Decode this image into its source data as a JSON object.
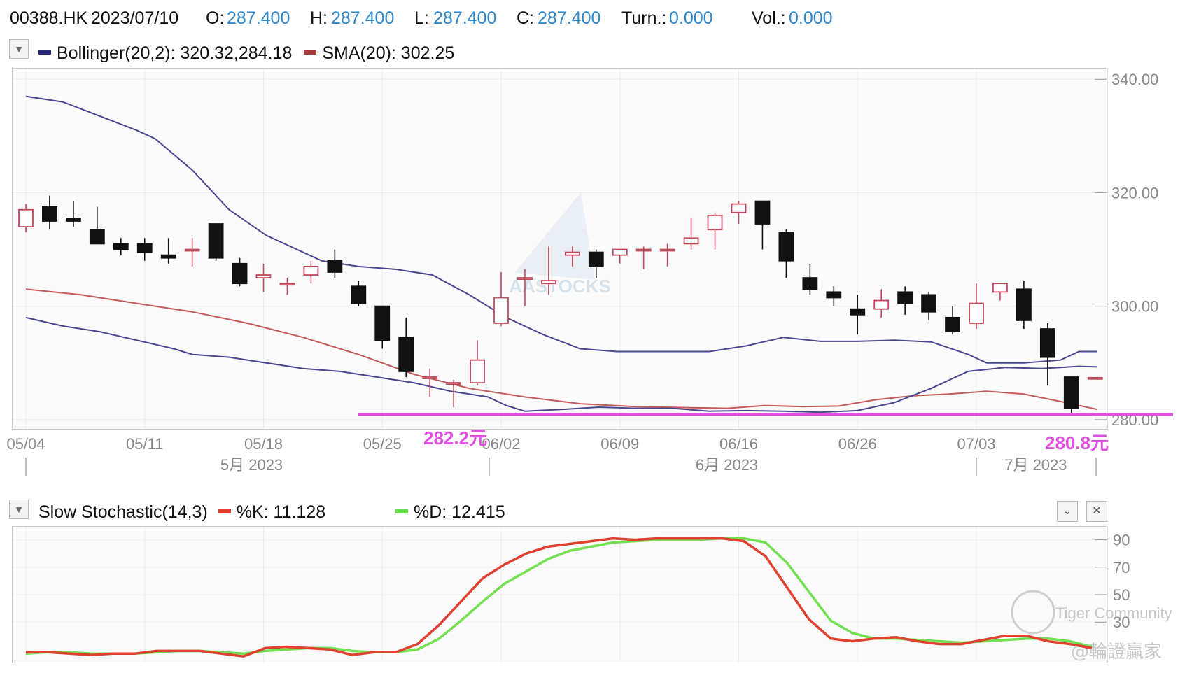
{
  "header": {
    "symbol": "00388.HK",
    "date": "2023/07/10",
    "open_label": "O:",
    "open": "287.400",
    "high_label": "H:",
    "high": "287.400",
    "low_label": "L:",
    "low": "287.400",
    "close_label": "C:",
    "close": "287.400",
    "turn_label": "Turn.:",
    "turn": "0.000",
    "vol_label": "Vol.:",
    "vol": "0.000"
  },
  "main_legend": {
    "bollinger": "Bollinger(20,2): 320.32,284.18",
    "sma": "SMA(20): 302.25",
    "bollinger_color": "#2c2a78",
    "sma_color": "#a83a3a"
  },
  "sub_legend": {
    "title": "Slow Stochastic(14,3)",
    "k": "%K: 11.128",
    "d": "%D: 12.415",
    "k_color": "#e04030",
    "d_color": "#66e04a"
  },
  "annotations": {
    "low_a": "282.2元",
    "low_b": "280.8元",
    "color": "#e050e0"
  },
  "watermarks": {
    "center": "AASTOCKS",
    "tiger": "Tiger Community",
    "handle": "@輪證贏家"
  },
  "chart_data": [
    {
      "type": "candlestick",
      "y_ticks": [
        "340.00",
        "320.00",
        "300.00",
        "280.00"
      ],
      "ylim": [
        278.5,
        342
      ],
      "x_tick_labels": [
        {
          "label": "05/04",
          "i": 0
        },
        {
          "label": "05/11",
          "i": 5
        },
        {
          "label": "05/18",
          "i": 10
        },
        {
          "label": "05/25",
          "i": 15
        },
        {
          "label": "06/02",
          "i": 20
        },
        {
          "label": "06/09",
          "i": 25
        },
        {
          "label": "06/16",
          "i": 30
        },
        {
          "label": "06/26",
          "i": 35
        },
        {
          "label": "07/03",
          "i": 40
        }
      ],
      "month_labels": [
        {
          "label": "5月 2023",
          "i": 9.5
        },
        {
          "label": "6月 2023",
          "i": 29.5
        },
        {
          "label": "7月 2023",
          "i": 42.5
        }
      ],
      "month_separators": [
        0,
        19.5,
        40
      ],
      "candles": [
        {
          "o": 314.0,
          "h": 318.0,
          "l": 313.0,
          "c": 317.0
        },
        {
          "o": 317.5,
          "h": 319.5,
          "l": 313.5,
          "c": 315.0
        },
        {
          "o": 315.5,
          "h": 318.5,
          "l": 314.0,
          "c": 315.0
        },
        {
          "o": 313.5,
          "h": 317.5,
          "l": 311.0,
          "c": 311.0
        },
        {
          "o": 311.0,
          "h": 312.0,
          "l": 309.0,
          "c": 310.0
        },
        {
          "o": 311.0,
          "h": 312.0,
          "l": 308.0,
          "c": 309.5
        },
        {
          "o": 309.0,
          "h": 312.0,
          "l": 307.5,
          "c": 308.5
        },
        {
          "o": 310.0,
          "h": 312.0,
          "l": 307.0,
          "c": 310.0
        },
        {
          "o": 314.5,
          "h": 314.5,
          "l": 308.0,
          "c": 308.5
        },
        {
          "o": 307.5,
          "h": 308.5,
          "l": 303.5,
          "c": 304.0
        },
        {
          "o": 305.0,
          "h": 307.5,
          "l": 302.5,
          "c": 305.5
        },
        {
          "o": 304.0,
          "h": 305.0,
          "l": 302.0,
          "c": 304.0
        },
        {
          "o": 305.5,
          "h": 308.0,
          "l": 304.0,
          "c": 307.0
        },
        {
          "o": 308.0,
          "h": 310.0,
          "l": 305.0,
          "c": 306.0
        },
        {
          "o": 303.5,
          "h": 304.5,
          "l": 300.0,
          "c": 300.5
        },
        {
          "o": 300.0,
          "h": 300.0,
          "l": 292.5,
          "c": 294.0
        },
        {
          "o": 294.5,
          "h": 298.0,
          "l": 287.5,
          "c": 288.5
        },
        {
          "o": 287.5,
          "h": 289.0,
          "l": 284.0,
          "c": 287.5
        },
        {
          "o": 286.5,
          "h": 287.0,
          "l": 282.2,
          "c": 286.5
        },
        {
          "o": 286.5,
          "h": 294.0,
          "l": 286.0,
          "c": 290.5
        },
        {
          "o": 297.0,
          "h": 306.0,
          "l": 296.5,
          "c": 301.5
        },
        {
          "o": 305.0,
          "h": 306.5,
          "l": 300.0,
          "c": 305.0
        },
        {
          "o": 304.0,
          "h": 310.5,
          "l": 302.0,
          "c": 304.5
        },
        {
          "o": 309.0,
          "h": 310.5,
          "l": 307.0,
          "c": 309.5
        },
        {
          "o": 309.5,
          "h": 310.0,
          "l": 305.0,
          "c": 307.0
        },
        {
          "o": 309.0,
          "h": 310.0,
          "l": 307.5,
          "c": 310.0
        },
        {
          "o": 310.0,
          "h": 310.5,
          "l": 306.5,
          "c": 310.0
        },
        {
          "o": 310.0,
          "h": 311.0,
          "l": 307.0,
          "c": 310.0
        },
        {
          "o": 311.0,
          "h": 315.5,
          "l": 310.0,
          "c": 312.0
        },
        {
          "o": 313.5,
          "h": 316.5,
          "l": 310.0,
          "c": 316.0
        },
        {
          "o": 316.5,
          "h": 318.5,
          "l": 314.5,
          "c": 318.0
        },
        {
          "o": 318.5,
          "h": 318.5,
          "l": 310.0,
          "c": 314.5
        },
        {
          "o": 313.0,
          "h": 313.5,
          "l": 305.0,
          "c": 308.0
        },
        {
          "o": 305.0,
          "h": 307.5,
          "l": 302.0,
          "c": 303.0
        },
        {
          "o": 302.5,
          "h": 303.5,
          "l": 300.0,
          "c": 301.5
        },
        {
          "o": 299.5,
          "h": 302.0,
          "l": 295.0,
          "c": 298.5
        },
        {
          "o": 299.5,
          "h": 303.0,
          "l": 298.0,
          "c": 301.0
        },
        {
          "o": 302.5,
          "h": 303.5,
          "l": 298.5,
          "c": 300.5
        },
        {
          "o": 302.0,
          "h": 302.5,
          "l": 297.5,
          "c": 299.0
        },
        {
          "o": 298.0,
          "h": 300.0,
          "l": 295.0,
          "c": 295.5
        },
        {
          "o": 297.0,
          "h": 304.0,
          "l": 296.0,
          "c": 300.5
        },
        {
          "o": 302.5,
          "h": 304.0,
          "l": 301.0,
          "c": 304.0
        },
        {
          "o": 303.0,
          "h": 304.5,
          "l": 296.0,
          "c": 297.5
        },
        {
          "o": 296.0,
          "h": 297.0,
          "l": 286.0,
          "c": 291.0
        },
        {
          "o": 287.5,
          "h": 287.5,
          "l": 280.8,
          "c": 282.0
        },
        {
          "o": 287.4,
          "h": 287.4,
          "l": 287.4,
          "c": 287.4
        }
      ],
      "bollinger_upper": [
        [
          0,
          337.0
        ],
        [
          2,
          336.0
        ],
        [
          4,
          333.5
        ],
        [
          6,
          331.0
        ],
        [
          7,
          329.5
        ],
        [
          9,
          324.0
        ],
        [
          11,
          317.0
        ],
        [
          13,
          312.5
        ],
        [
          16,
          308.0
        ],
        [
          18,
          307.0
        ],
        [
          20,
          306.5
        ],
        [
          22,
          305.5
        ],
        [
          24,
          302.0
        ],
        [
          26,
          298.0
        ],
        [
          28,
          295.0
        ],
        [
          30,
          292.5
        ],
        [
          32,
          292.0
        ],
        [
          33,
          292.0
        ],
        [
          35,
          292.0
        ],
        [
          37,
          292.0
        ],
        [
          39,
          293.0
        ],
        [
          41,
          294.5
        ],
        [
          43,
          293.8
        ],
        [
          45,
          293.8
        ],
        [
          47,
          294.0
        ],
        [
          49,
          293.7
        ],
        [
          51,
          291.5
        ],
        [
          52,
          290.0
        ],
        [
          53,
          290.0
        ],
        [
          54,
          290.0
        ],
        [
          56,
          290.5
        ],
        [
          57,
          292.0
        ],
        [
          58,
          292.0
        ]
      ],
      "sma": [
        [
          0,
          303.0
        ],
        [
          3,
          302.0
        ],
        [
          6,
          300.5
        ],
        [
          9,
          299.0
        ],
        [
          12,
          297.0
        ],
        [
          15,
          294.5
        ],
        [
          18,
          291.5
        ],
        [
          21,
          288.0
        ],
        [
          24,
          285.5
        ],
        [
          27,
          284.0
        ],
        [
          30,
          282.8
        ],
        [
          33,
          282.3
        ],
        [
          36,
          282.1
        ],
        [
          38,
          282.0
        ],
        [
          40,
          282.5
        ],
        [
          42,
          282.3
        ],
        [
          44,
          282.4
        ],
        [
          46,
          283.5
        ],
        [
          48,
          284.2
        ],
        [
          50,
          284.5
        ],
        [
          52,
          285.0
        ],
        [
          54,
          284.5
        ],
        [
          56,
          283.2
        ],
        [
          58,
          281.8
        ]
      ],
      "bollinger_lower": [
        [
          0,
          298.0
        ],
        [
          2,
          296.5
        ],
        [
          4,
          295.5
        ],
        [
          6,
          294.0
        ],
        [
          8,
          292.5
        ],
        [
          9,
          291.5
        ],
        [
          11,
          291.0
        ],
        [
          13,
          290.0
        ],
        [
          15,
          289.0
        ],
        [
          17,
          288.5
        ],
        [
          19,
          287.5
        ],
        [
          20,
          287.0
        ],
        [
          21,
          286.5
        ],
        [
          23,
          285.0
        ],
        [
          25,
          284.0
        ],
        [
          26,
          282.5
        ],
        [
          27,
          281.5
        ],
        [
          29,
          281.8
        ],
        [
          31,
          282.2
        ],
        [
          33,
          282.0
        ],
        [
          35,
          282.0
        ],
        [
          37,
          281.5
        ],
        [
          39,
          281.6
        ],
        [
          41,
          281.5
        ],
        [
          43,
          281.3
        ],
        [
          45,
          281.6
        ],
        [
          47,
          283.0
        ],
        [
          49,
          285.5
        ],
        [
          51,
          288.5
        ],
        [
          53,
          289.2
        ],
        [
          55,
          289.0
        ],
        [
          57,
          289.4
        ],
        [
          58,
          289.3
        ]
      ]
    },
    {
      "type": "line",
      "title": "Slow Stochastic(14,3)",
      "y_ticks": [
        "90",
        "70",
        "50",
        "30"
      ],
      "ylim": [
        0,
        100
      ],
      "series": [
        {
          "name": "%K",
          "values": [
            8,
            8,
            7,
            6,
            7,
            7,
            9,
            9,
            9,
            7,
            5,
            11,
            12,
            11,
            10,
            6,
            8,
            8,
            14,
            28,
            45,
            62,
            72,
            80,
            85,
            87,
            89,
            91,
            90,
            91,
            91,
            91,
            91,
            89,
            78,
            55,
            32,
            18,
            16,
            18,
            19,
            16,
            14,
            14,
            17,
            20,
            20,
            16,
            14,
            11
          ]
        },
        {
          "name": "%D",
          "values": [
            7,
            8,
            8,
            7,
            7,
            7,
            8,
            9,
            9,
            8,
            7,
            9,
            10,
            11,
            11,
            9,
            8,
            8,
            10,
            18,
            31,
            45,
            58,
            67,
            76,
            82,
            85,
            88,
            89,
            90,
            90,
            90,
            91,
            91,
            88,
            73,
            52,
            31,
            22,
            18,
            18,
            17,
            16,
            15,
            16,
            17,
            18,
            18,
            16,
            12
          ]
        }
      ]
    }
  ]
}
